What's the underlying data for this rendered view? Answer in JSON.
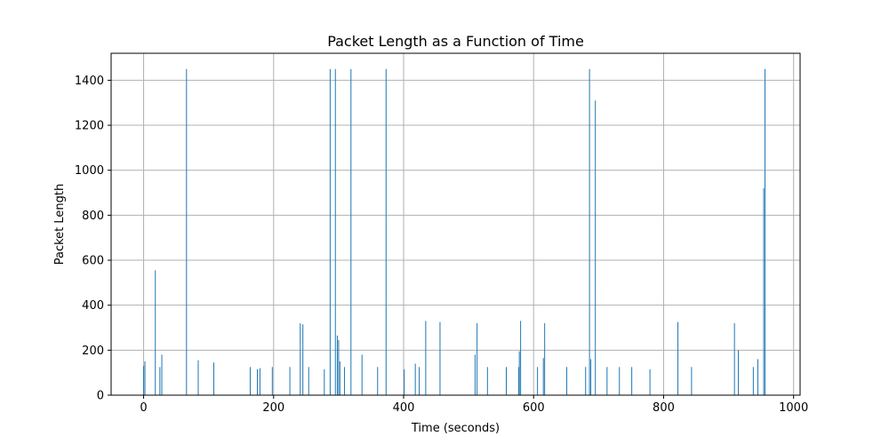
{
  "chart_data": {
    "type": "bar",
    "title": "Packet Length as a Function of Time",
    "xlabel": "Time (seconds)",
    "ylabel": "Packet Length",
    "xlim": [
      -50,
      1010
    ],
    "ylim": [
      0,
      1520
    ],
    "xticks": [
      0,
      200,
      400,
      600,
      800,
      1000
    ],
    "yticks": [
      0,
      200,
      400,
      600,
      800,
      1000,
      1200,
      1400
    ],
    "grid": true,
    "bar_color": "#1f77b4",
    "points": [
      {
        "x": 0,
        "y": 130
      },
      {
        "x": 2,
        "y": 150
      },
      {
        "x": 18,
        "y": 555
      },
      {
        "x": 25,
        "y": 125
      },
      {
        "x": 28,
        "y": 180
      },
      {
        "x": 66,
        "y": 1450
      },
      {
        "x": 84,
        "y": 155
      },
      {
        "x": 108,
        "y": 145
      },
      {
        "x": 164,
        "y": 125
      },
      {
        "x": 175,
        "y": 115
      },
      {
        "x": 179,
        "y": 120
      },
      {
        "x": 198,
        "y": 125
      },
      {
        "x": 225,
        "y": 125
      },
      {
        "x": 241,
        "y": 320
      },
      {
        "x": 245,
        "y": 315
      },
      {
        "x": 254,
        "y": 125
      },
      {
        "x": 278,
        "y": 115
      },
      {
        "x": 287,
        "y": 1450
      },
      {
        "x": 295,
        "y": 1450
      },
      {
        "x": 298,
        "y": 265
      },
      {
        "x": 300,
        "y": 245
      },
      {
        "x": 302,
        "y": 150
      },
      {
        "x": 309,
        "y": 125
      },
      {
        "x": 319,
        "y": 1450
      },
      {
        "x": 336,
        "y": 180
      },
      {
        "x": 360,
        "y": 125
      },
      {
        "x": 373,
        "y": 1450
      },
      {
        "x": 401,
        "y": 115
      },
      {
        "x": 418,
        "y": 140
      },
      {
        "x": 424,
        "y": 125
      },
      {
        "x": 434,
        "y": 330
      },
      {
        "x": 456,
        "y": 325
      },
      {
        "x": 510,
        "y": 180
      },
      {
        "x": 513,
        "y": 320
      },
      {
        "x": 529,
        "y": 125
      },
      {
        "x": 558,
        "y": 125
      },
      {
        "x": 577,
        "y": 125
      },
      {
        "x": 578,
        "y": 195
      },
      {
        "x": 580,
        "y": 330
      },
      {
        "x": 606,
        "y": 125
      },
      {
        "x": 615,
        "y": 165
      },
      {
        "x": 617,
        "y": 320
      },
      {
        "x": 651,
        "y": 125
      },
      {
        "x": 680,
        "y": 125
      },
      {
        "x": 686,
        "y": 1450
      },
      {
        "x": 688,
        "y": 160
      },
      {
        "x": 695,
        "y": 1310
      },
      {
        "x": 713,
        "y": 125
      },
      {
        "x": 732,
        "y": 125
      },
      {
        "x": 751,
        "y": 125
      },
      {
        "x": 779,
        "y": 115
      },
      {
        "x": 822,
        "y": 325
      },
      {
        "x": 843,
        "y": 125
      },
      {
        "x": 909,
        "y": 320
      },
      {
        "x": 915,
        "y": 200
      },
      {
        "x": 938,
        "y": 125
      },
      {
        "x": 945,
        "y": 160
      },
      {
        "x": 954,
        "y": 920
      },
      {
        "x": 956,
        "y": 1450
      }
    ]
  }
}
